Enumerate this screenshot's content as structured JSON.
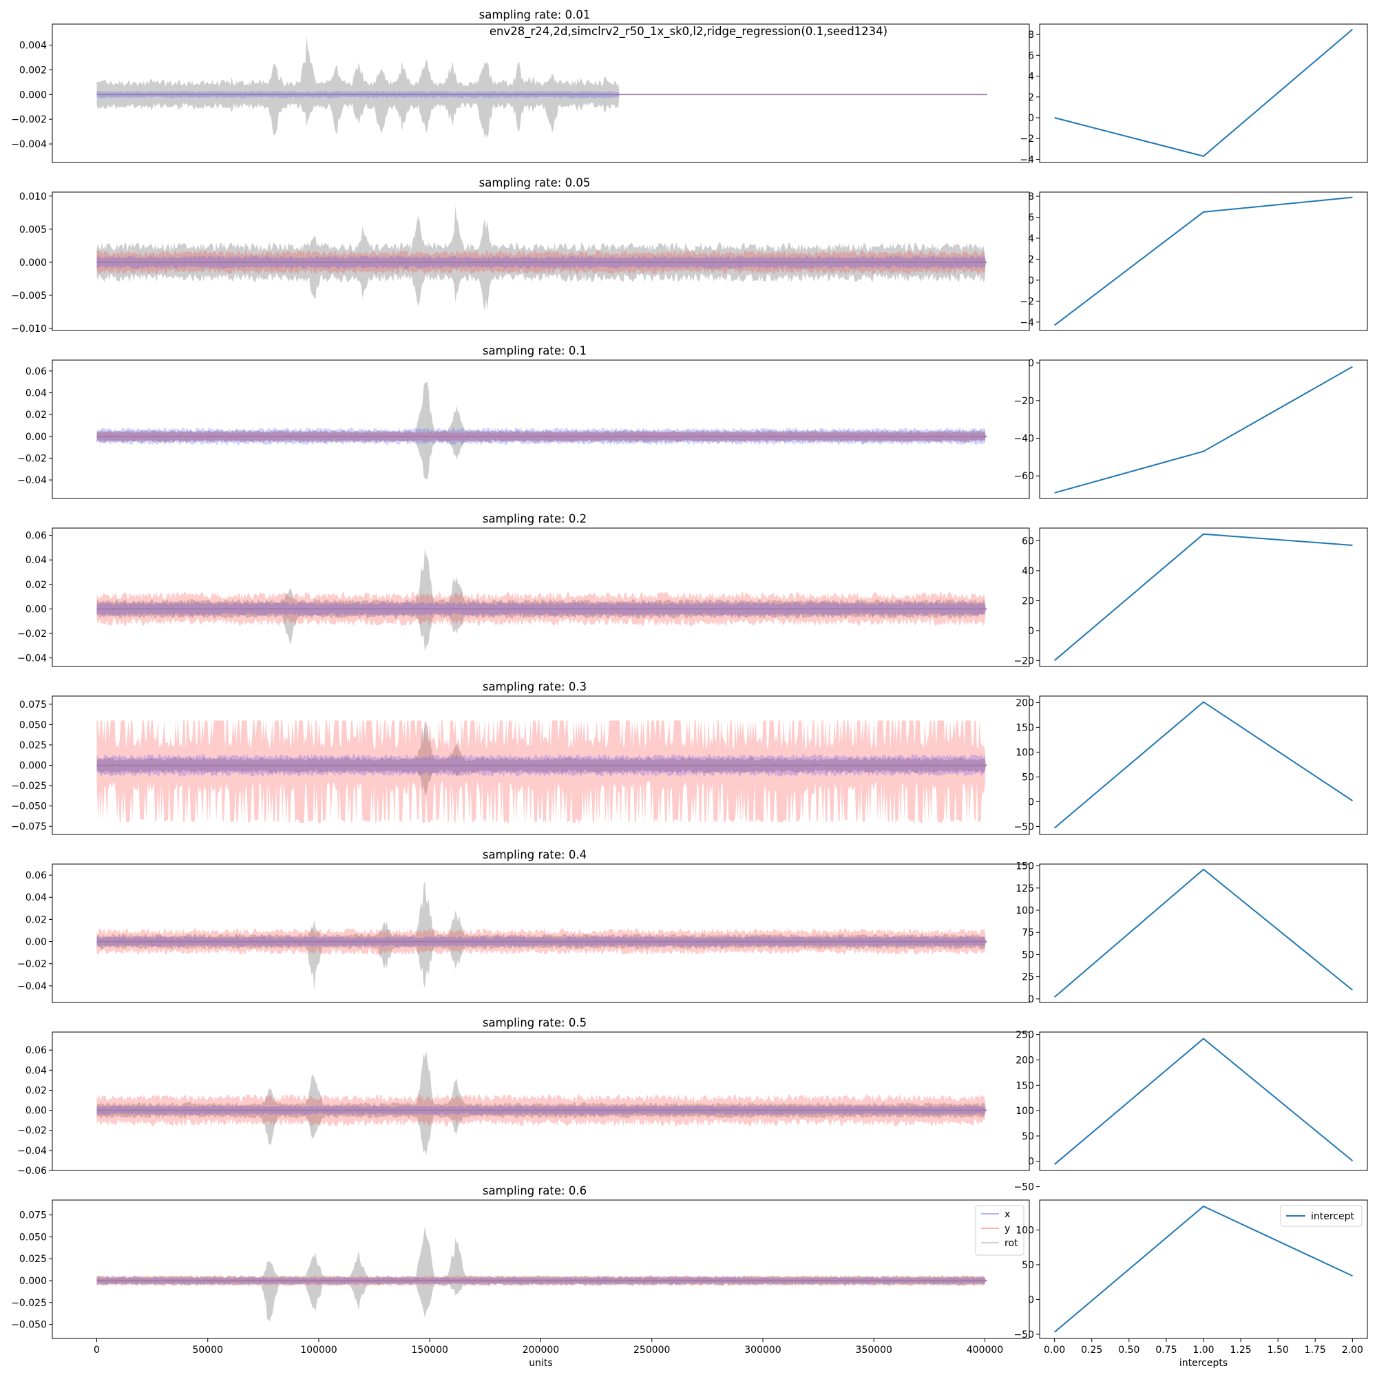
{
  "figure": {
    "suptitle": "env28_r24,2d,simclrv2_r50_1x_sk0,l2,ridge_regression(0.1,seed1234)"
  },
  "chart_data": [
    {
      "type": "area",
      "role": "signal",
      "title": "sampling rate: 0.01",
      "xlim": [
        -20000,
        420000
      ],
      "ylim": [
        -0.0055,
        0.0057
      ],
      "yticks": [
        -0.004,
        -0.002,
        0.0,
        0.002,
        0.004
      ],
      "ytick_labels": [
        "−0.004",
        "−0.002",
        "0.000",
        "0.002",
        "0.004"
      ],
      "active_until": 235000,
      "bands": {
        "x": 0.0003,
        "y": 0.0,
        "rot": 0.0012
      },
      "spikes": [
        [
          80000,
          0.003,
          -0.004
        ],
        [
          95000,
          0.0054,
          -0.003
        ],
        [
          108000,
          0.0028,
          -0.0038
        ],
        [
          118000,
          0.0032,
          -0.003
        ],
        [
          128000,
          0.0028,
          -0.0042
        ],
        [
          138000,
          0.0032,
          -0.0035
        ],
        [
          148000,
          0.0035,
          -0.0038
        ],
        [
          160000,
          0.0032,
          -0.003
        ],
        [
          175000,
          0.0038,
          -0.005
        ],
        [
          190000,
          0.0028,
          -0.0032
        ],
        [
          205000,
          0.0022,
          -0.004
        ]
      ],
      "show_xticks": false
    },
    {
      "type": "line",
      "role": "intercept",
      "x": [
        0,
        1,
        2
      ],
      "y": [
        0.0,
        -3.7,
        8.5
      ],
      "ylim": [
        -4.3,
        9.0
      ],
      "yticks": [
        -4,
        -2,
        0,
        2,
        4,
        6,
        8
      ],
      "ytick_labels": [
        "−4",
        "−2",
        "0",
        "2",
        "4",
        "6",
        "8"
      ],
      "show_xticks": false
    },
    {
      "type": "area",
      "role": "signal",
      "title": "sampling rate: 0.05",
      "xlim": [
        -20000,
        420000
      ],
      "ylim": [
        -0.0103,
        0.0106
      ],
      "yticks": [
        -0.01,
        -0.005,
        0.0,
        0.005,
        0.01
      ],
      "ytick_labels": [
        "−0.010",
        "−0.005",
        "0.000",
        "0.005",
        "0.010"
      ],
      "active_until": 400000,
      "bands": {
        "x": 0.001,
        "y": 0.0018,
        "rot": 0.003
      },
      "spikes": [
        [
          98000,
          0.005,
          -0.007
        ],
        [
          120000,
          0.006,
          -0.006
        ],
        [
          145000,
          0.0085,
          -0.008
        ],
        [
          162000,
          0.0098,
          -0.007
        ],
        [
          175000,
          0.008,
          -0.009
        ]
      ],
      "show_xticks": false
    },
    {
      "type": "line",
      "role": "intercept",
      "x": [
        0,
        1,
        2
      ],
      "y": [
        -4.3,
        6.5,
        7.9
      ],
      "ylim": [
        -4.8,
        8.4
      ],
      "yticks": [
        -4,
        -2,
        0,
        2,
        4,
        6,
        8
      ],
      "ytick_labels": [
        "−4",
        "−2",
        "0",
        "2",
        "4",
        "6",
        "8"
      ],
      "show_xticks": false
    },
    {
      "type": "area",
      "role": "signal",
      "title": "sampling rate: 0.1",
      "xlim": [
        -20000,
        420000
      ],
      "ylim": [
        -0.057,
        0.07
      ],
      "yticks": [
        -0.04,
        -0.02,
        0.0,
        0.02,
        0.04,
        0.06
      ],
      "ytick_labels": [
        "−0.04",
        "−0.02",
        "0.00",
        "0.02",
        "0.04",
        "0.06"
      ],
      "active_until": 400000,
      "bands": {
        "x": 0.008,
        "y": 0.005,
        "rot": 0.006
      },
      "spikes": [
        [
          148000,
          0.066,
          -0.052
        ],
        [
          162000,
          0.037,
          -0.028
        ]
      ],
      "show_xticks": false
    },
    {
      "type": "line",
      "role": "intercept",
      "x": [
        0,
        1,
        2
      ],
      "y": [
        -69.0,
        -47.0,
        -2.0
      ],
      "ylim": [
        -72.0,
        1.5
      ],
      "yticks": [
        -60,
        -40,
        -20,
        0
      ],
      "ytick_labels": [
        "−60",
        "−40",
        "−20",
        "0"
      ],
      "show_xticks": false
    },
    {
      "type": "area",
      "role": "signal",
      "title": "sampling rate: 0.2",
      "xlim": [
        -20000,
        420000
      ],
      "ylim": [
        -0.047,
        0.066
      ],
      "yticks": [
        -0.04,
        -0.02,
        0.0,
        0.02,
        0.04,
        0.06
      ],
      "ytick_labels": [
        "−0.04",
        "−0.02",
        "0.00",
        "0.02",
        "0.04",
        "0.06"
      ],
      "active_until": 400000,
      "bands": {
        "x": 0.006,
        "y": 0.014,
        "rot": 0.008
      },
      "spikes": [
        [
          148000,
          0.06,
          -0.042
        ],
        [
          162000,
          0.036,
          -0.028
        ],
        [
          87000,
          0.02,
          -0.034
        ]
      ],
      "show_xticks": false
    },
    {
      "type": "line",
      "role": "intercept",
      "x": [
        0,
        1,
        2
      ],
      "y": [
        -20.0,
        64.5,
        57.0
      ],
      "ylim": [
        -24.0,
        68.5
      ],
      "yticks": [
        -20,
        0,
        20,
        40,
        60
      ],
      "ytick_labels": [
        "−20",
        "0",
        "20",
        "40",
        "60"
      ],
      "show_xticks": false
    },
    {
      "type": "area",
      "role": "signal",
      "title": "sampling rate: 0.3",
      "xlim": [
        -20000,
        420000
      ],
      "ylim": [
        -0.085,
        0.085
      ],
      "yticks": [
        -0.075,
        -0.05,
        -0.025,
        0.0,
        0.025,
        0.05,
        0.075
      ],
      "ytick_labels": [
        "−0.075",
        "−0.050",
        "−0.025",
        "0.000",
        "0.025",
        "0.050",
        "0.075"
      ],
      "active_until": 400000,
      "bands": {
        "x": 0.014,
        "y": 0.055,
        "rot": 0.01
      },
      "spikes": [
        [
          148000,
          0.068,
          -0.045
        ],
        [
          162000,
          0.04,
          -0.02
        ]
      ],
      "show_xticks": false
    },
    {
      "type": "line",
      "role": "intercept",
      "x": [
        0,
        1,
        2
      ],
      "y": [
        -53.0,
        201.0,
        2.0
      ],
      "ylim": [
        -66.0,
        213.0
      ],
      "yticks": [
        -50,
        0,
        50,
        100,
        150,
        200
      ],
      "ytick_labels": [
        "−50",
        "0",
        "50",
        "100",
        "150",
        "200"
      ],
      "show_xticks": false
    },
    {
      "type": "area",
      "role": "signal",
      "title": "sampling rate: 0.4",
      "xlim": [
        -20000,
        420000
      ],
      "ylim": [
        -0.055,
        0.07
      ],
      "yticks": [
        -0.04,
        -0.02,
        0.0,
        0.02,
        0.04,
        0.06
      ],
      "ytick_labels": [
        "−0.04",
        "−0.02",
        "0.00",
        "0.02",
        "0.04",
        "0.06"
      ],
      "active_until": 400000,
      "bands": {
        "x": 0.005,
        "y": 0.012,
        "rot": 0.007
      },
      "spikes": [
        [
          148000,
          0.068,
          -0.052
        ],
        [
          162000,
          0.034,
          -0.03
        ],
        [
          98000,
          0.02,
          -0.045
        ],
        [
          130000,
          0.022,
          -0.03
        ]
      ],
      "show_xticks": false
    },
    {
      "type": "line",
      "role": "intercept",
      "x": [
        0,
        1,
        2
      ],
      "y": [
        2.0,
        146.0,
        10.0
      ],
      "ylim": [
        -4.0,
        152.0
      ],
      "yticks": [
        0,
        25,
        50,
        75,
        100,
        125,
        150
      ],
      "ytick_labels": [
        "0",
        "25",
        "50",
        "75",
        "100",
        "125",
        "150"
      ],
      "show_xticks": false
    },
    {
      "type": "area",
      "role": "signal",
      "title": "sampling rate: 0.5",
      "xlim": [
        -20000,
        420000
      ],
      "ylim": [
        -0.06,
        0.078
      ],
      "yticks": [
        -0.06,
        -0.04,
        -0.02,
        0.0,
        0.02,
        0.04,
        0.06
      ],
      "ytick_labels": [
        "−0.06",
        "−0.04",
        "−0.02",
        "0.00",
        "0.02",
        "0.04",
        "0.06"
      ],
      "active_until": 400000,
      "bands": {
        "x": 0.005,
        "y": 0.016,
        "rot": 0.008
      },
      "spikes": [
        [
          148000,
          0.073,
          -0.055
        ],
        [
          162000,
          0.04,
          -0.03
        ],
        [
          98000,
          0.048,
          -0.038
        ],
        [
          78000,
          0.025,
          -0.04
        ]
      ],
      "show_xticks": false
    },
    {
      "type": "line",
      "role": "intercept",
      "x": [
        0,
        1,
        2
      ],
      "y": [
        -6.0,
        242.0,
        1.0
      ],
      "ylim": [
        -18.0,
        255.0
      ],
      "yticks": [
        -50,
        0,
        50,
        100,
        150,
        200,
        250
      ],
      "ytick_labels": [
        "−50",
        "0",
        "50",
        "100",
        "150",
        "200",
        "250"
      ],
      "show_xticks": false
    },
    {
      "type": "area",
      "role": "signal",
      "title": "sampling rate: 0.6",
      "xlim": [
        -20000,
        420000
      ],
      "ylim": [
        -0.066,
        0.092
      ],
      "yticks": [
        -0.05,
        -0.025,
        0.0,
        0.025,
        0.05,
        0.075
      ],
      "ytick_labels": [
        "−0.050",
        "−0.025",
        "0.000",
        "0.025",
        "0.050",
        "0.075"
      ],
      "active_until": 400000,
      "bands": {
        "x": 0.004,
        "y": 0.006,
        "rot": 0.006
      },
      "spikes": [
        [
          78000,
          0.03,
          -0.062
        ],
        [
          148000,
          0.085,
          -0.058
        ],
        [
          162000,
          0.058,
          -0.02
        ],
        [
          98000,
          0.04,
          -0.045
        ],
        [
          118000,
          0.035,
          -0.035
        ]
      ],
      "xlabel": "units",
      "xticks": [
        0,
        50000,
        100000,
        150000,
        200000,
        250000,
        300000,
        350000,
        400000
      ],
      "xtick_labels": [
        "0",
        "50000",
        "100000",
        "150000",
        "200000",
        "250000",
        "300000",
        "350000",
        "400000"
      ],
      "legend": [
        "x",
        "y",
        "rot"
      ],
      "legend_position": "upper-right",
      "show_xticks": true
    },
    {
      "type": "line",
      "role": "intercept",
      "x": [
        0,
        1,
        2
      ],
      "y": [
        -47.0,
        134.0,
        34.0
      ],
      "ylim": [
        -56.0,
        143.0
      ],
      "yticks": [
        -50,
        0,
        50,
        100
      ],
      "ytick_labels": [
        "−50",
        "0",
        "50",
        "100"
      ],
      "xlabel": "intercepts",
      "xticks": [
        0,
        0.25,
        0.5,
        0.75,
        1.0,
        1.25,
        1.5,
        1.75,
        2.0
      ],
      "xtick_labels": [
        "0.00",
        "0.25",
        "0.50",
        "0.75",
        "1.00",
        "1.25",
        "1.50",
        "1.75",
        "2.00"
      ],
      "legend": [
        "intercept"
      ],
      "legend_position": "upper-right",
      "show_xticks": true
    }
  ],
  "colors": {
    "x": "#3333ff",
    "y": "#ff3333",
    "rot": "#888888",
    "intercept": "#1f77b4",
    "frame": "#000000"
  }
}
